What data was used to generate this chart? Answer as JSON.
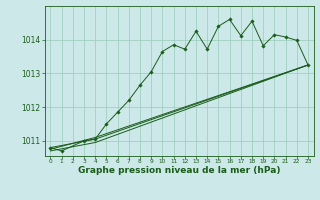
{
  "title": "Graphe pression niveau de la mer (hPa)",
  "bg_color": "#cce8e8",
  "grid_color": "#99ccbb",
  "line_color": "#1a5c1a",
  "marker_color": "#1a5c1a",
  "xlim": [
    -0.5,
    23.5
  ],
  "ylim": [
    1010.55,
    1015.0
  ],
  "yticks": [
    1011,
    1012,
    1013,
    1014
  ],
  "xticks": [
    0,
    1,
    2,
    3,
    4,
    5,
    6,
    7,
    8,
    9,
    10,
    11,
    12,
    13,
    14,
    15,
    16,
    17,
    18,
    19,
    20,
    21,
    22,
    23
  ],
  "series1_x": [
    0,
    1,
    3,
    4,
    5,
    6,
    7,
    8,
    9,
    10,
    11,
    12,
    13,
    14,
    15,
    16,
    17,
    18,
    19,
    20,
    21,
    22,
    23
  ],
  "series1_y": [
    1010.8,
    1010.7,
    1011.0,
    1011.05,
    1011.5,
    1011.85,
    1012.2,
    1012.65,
    1013.05,
    1013.65,
    1013.85,
    1013.72,
    1014.25,
    1013.72,
    1014.4,
    1014.6,
    1014.12,
    1014.55,
    1013.82,
    1014.15,
    1014.08,
    1013.98,
    1013.25
  ],
  "series2_x": [
    0,
    4,
    23
  ],
  "series2_y": [
    1010.8,
    1011.05,
    1013.25
  ],
  "series3_x": [
    0,
    4,
    23
  ],
  "series3_y": [
    1010.75,
    1011.1,
    1013.25
  ],
  "series4_x": [
    0,
    4,
    23
  ],
  "series4_y": [
    1010.7,
    1010.95,
    1013.25
  ],
  "xlabel_fontsize": 6.5,
  "ytick_fontsize": 5.5,
  "xtick_fontsize": 4.2
}
